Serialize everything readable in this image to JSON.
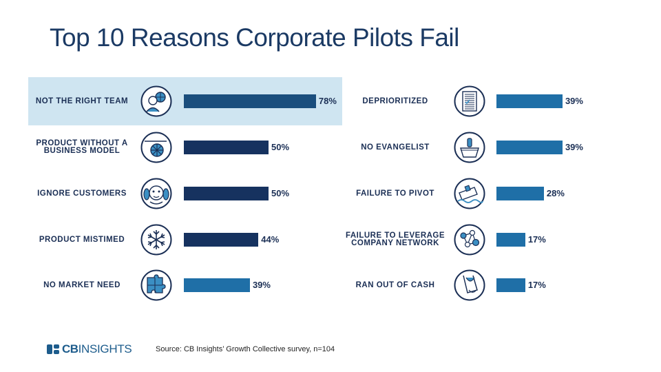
{
  "title": "Top 10 Reasons Corporate Pilots Fail",
  "source": "Source: CB Insights’ Growth Collective survey, n=104",
  "logo": {
    "bold": "CB",
    "regular": "INSIGHTS"
  },
  "colors": {
    "dark_bar": "#16325f",
    "light_bar": "#1f6fa7",
    "highlight_bar": "#1a4e7d",
    "highlight_bg": "#cfe5f1",
    "text": "#1b2f55"
  },
  "chart_data": {
    "type": "bar",
    "title": "Top 10 Reasons Corporate Pilots Fail",
    "xlabel": "",
    "ylabel": "",
    "ylim": [
      0,
      100
    ],
    "highlighted": "NOT THE RIGHT TEAM",
    "categories": [
      "NOT THE RIGHT TEAM",
      "PRODUCT WITHOUT A\nBUSINESS MODEL",
      "IGNORE CUSTOMERS",
      "PRODUCT MISTIMED",
      "NO MARKET NEED",
      "DEPRIORITIZED",
      "NO EVANGELIST",
      "FAILURE TO PIVOT",
      "FAILURE TO LEVERAGE\nCOMPANY NETWORK",
      "RAN OUT OF CASH"
    ],
    "values": [
      78,
      50,
      50,
      44,
      39,
      39,
      39,
      28,
      17,
      17
    ],
    "value_labels": [
      "78%",
      "50%",
      "50%",
      "44%",
      "39%",
      "39%",
      "39%",
      "28%",
      "17%",
      "17%"
    ],
    "icons": [
      "team-icon",
      "cart-wheel-icon",
      "monkey-covering-ears-icon",
      "snowflake-icon",
      "puzzle-pieces-icon",
      "document-list-icon",
      "podium-icon",
      "sinking-ship-icon",
      "network-nodes-icon",
      "empty-pocket-icon"
    ],
    "bar_shades": [
      "highlight",
      "dark",
      "dark",
      "dark",
      "light",
      "light",
      "light",
      "light",
      "light",
      "light"
    ]
  }
}
